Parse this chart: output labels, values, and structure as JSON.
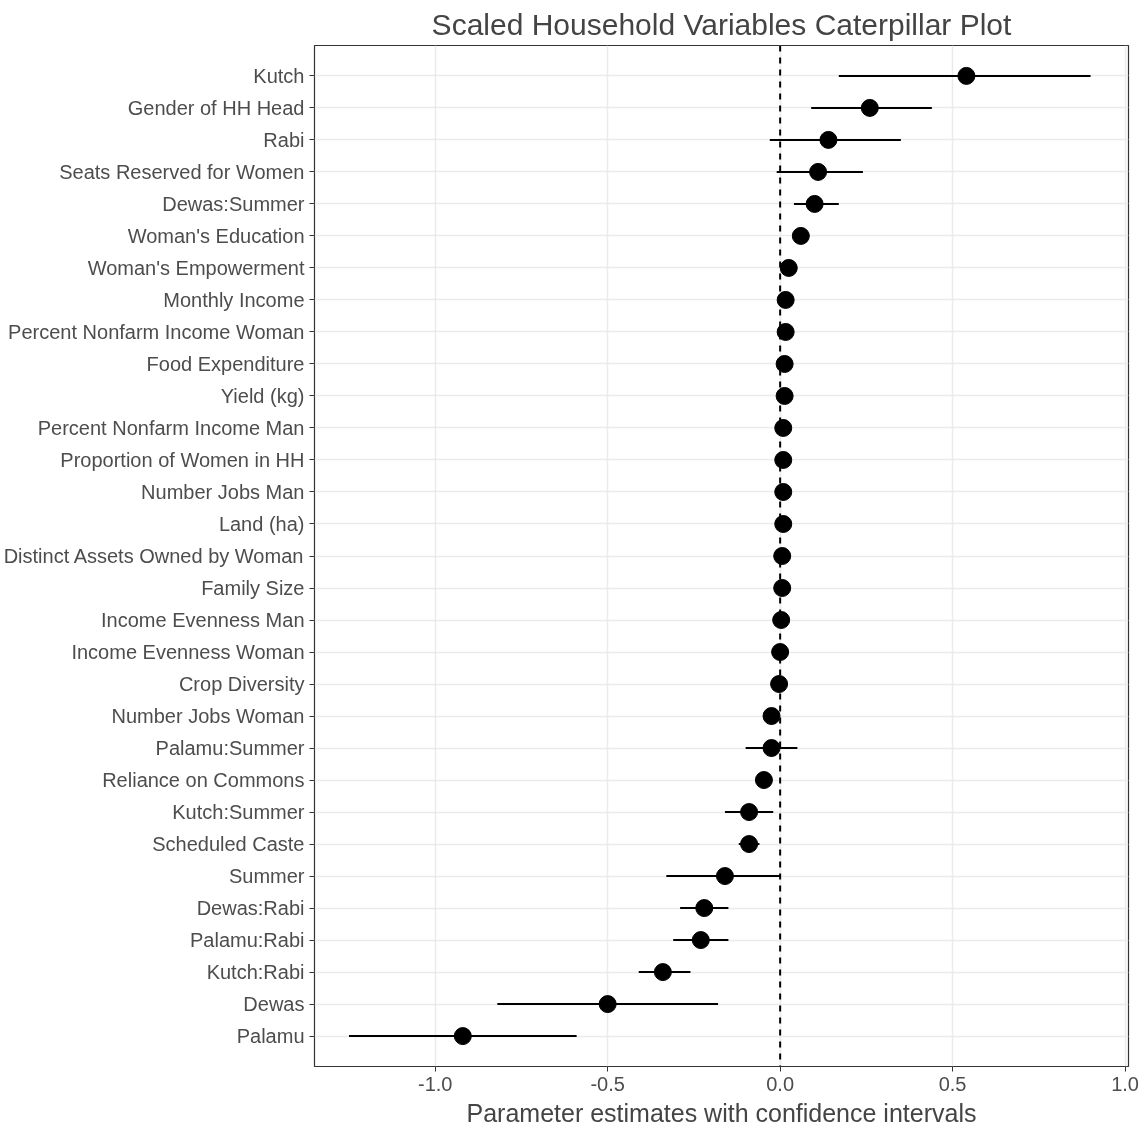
{
  "chart_data": {
    "type": "scatter",
    "orientation": "horizontal",
    "title": "Scaled Household Variables Caterpillar Plot",
    "xlabel": "Parameter estimates with confidence intervals",
    "categories": [
      "Kutch",
      "Gender of HH Head",
      "Rabi",
      "Seats Reserved for Women",
      "Dewas:Summer",
      "Woman's Education",
      "Woman's Empowerment",
      "Monthly Income",
      "Percent Nonfarm Income Woman",
      "Food Expenditure",
      "Yield (kg)",
      "Percent Nonfarm Income Man",
      "Proportion of Women in HH",
      "Number Jobs Man",
      "Land (ha)",
      "Distinct Assets Owned by Woman",
      "Family Size",
      "Income Evenness Man",
      "Income Evenness Woman",
      "Crop Diversity",
      "Number Jobs Woman",
      "Palamu:Summer",
      "Reliance on Commons",
      "Kutch:Summer",
      "Scheduled Caste",
      "Summer",
      "Dewas:Rabi",
      "Palamu:Rabi",
      "Kutch:Rabi",
      "Dewas",
      "Palamu"
    ],
    "values": [
      0.54,
      0.26,
      0.14,
      0.11,
      0.1,
      0.06,
      0.025,
      0.016,
      0.016,
      0.013,
      0.013,
      0.009,
      0.009,
      0.009,
      0.009,
      0.006,
      0.006,
      0.003,
      0.0,
      -0.003,
      -0.025,
      -0.025,
      -0.047,
      -0.09,
      -0.09,
      -0.16,
      -0.22,
      -0.23,
      -0.34,
      -0.5,
      -0.92
    ],
    "errors": [
      [
        0.17,
        0.9
      ],
      [
        0.09,
        0.44
      ],
      [
        -0.03,
        0.35
      ],
      [
        -0.01,
        0.24
      ],
      [
        0.04,
        0.17
      ],
      null,
      null,
      null,
      null,
      null,
      null,
      null,
      null,
      null,
      null,
      null,
      null,
      null,
      null,
      null,
      null,
      [
        -0.1,
        0.05
      ],
      null,
      [
        -0.16,
        -0.02
      ],
      [
        -0.12,
        -0.06
      ],
      [
        -0.33,
        0.0
      ],
      [
        -0.29,
        -0.15
      ],
      [
        -0.31,
        -0.15
      ],
      [
        -0.41,
        -0.26
      ],
      [
        -0.82,
        -0.18
      ],
      [
        -1.25,
        -0.59
      ]
    ],
    "color": "#000000",
    "marker": "circle",
    "xlim": [
      -1.35,
      1.01
    ],
    "xticks": [
      {
        "value": -1.0,
        "label": "-1.0"
      },
      {
        "value": -0.5,
        "label": "-0.5"
      },
      {
        "value": 0.0,
        "label": "0.0"
      },
      {
        "value": 0.5,
        "label": "0.5"
      },
      {
        "value": 1.0,
        "label": "1.0"
      }
    ],
    "ref_lines": [
      {
        "axis": "x",
        "value": 0,
        "line_style": "dashed",
        "color": "#000000"
      }
    ],
    "grid": true
  }
}
